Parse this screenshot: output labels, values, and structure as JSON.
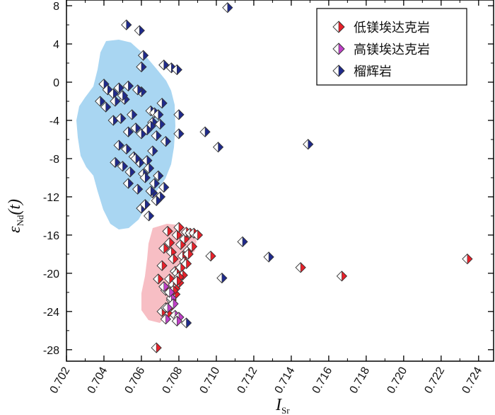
{
  "chart_data": {
    "type": "scatter",
    "title": "",
    "xlabel": {
      "main": "I",
      "sub": "Sr"
    },
    "ylabel": {
      "main": "ε",
      "sub": "Nd",
      "tail": "(t)"
    },
    "xlim": [
      0.702,
      0.7248
    ],
    "ylim": [
      -29.2,
      8.6
    ],
    "x_ticks": [
      "0.702",
      "0.704",
      "0.706",
      "0.708",
      "0.710",
      "0.712",
      "0.714",
      "0.716",
      "0.718",
      "0.720",
      "0.722",
      "0.724"
    ],
    "x_tick_values": [
      0.702,
      0.704,
      0.706,
      0.708,
      0.71,
      0.712,
      0.714,
      0.716,
      0.718,
      0.72,
      0.722,
      0.724
    ],
    "y_ticks": [
      "8",
      "4",
      "0",
      "-4",
      "-8",
      "-12",
      "-16",
      "-20",
      "-24",
      "-28"
    ],
    "y_tick_values": [
      8,
      4,
      0,
      -4,
      -8,
      -12,
      -16,
      -20,
      -24,
      -28
    ],
    "grid": false,
    "legend_position": "top-right",
    "colors": {
      "red": "#e8202a",
      "magenta": "#c040c8",
      "navy": "#1f2a8c",
      "blue_field": "#8cc8ee",
      "red_field": "#f4a8b0"
    },
    "series": [
      {
        "name": "低镁埃达克岩",
        "color": "#e8202a",
        "x": [
          0.7069,
          0.7071,
          0.7072,
          0.7074,
          0.7075,
          0.7076,
          0.7077,
          0.7078,
          0.7079,
          0.708,
          0.7081,
          0.7082,
          0.7083,
          0.7084,
          0.7085,
          0.7086,
          0.7088,
          0.709,
          0.7073,
          0.7075,
          0.7077,
          0.7079,
          0.7081,
          0.7083,
          0.7085,
          0.7087,
          0.7076,
          0.7078,
          0.708,
          0.7082,
          0.7084,
          0.7074,
          0.7076,
          0.7078,
          0.708,
          0.7071,
          0.7073,
          0.7075,
          0.7077,
          0.7079,
          0.7068,
          0.7097,
          0.7145,
          0.7167,
          0.7234
        ],
        "y": [
          -20.6,
          -19.2,
          -17.4,
          -15.6,
          -16.8,
          -17.8,
          -18.5,
          -19.8,
          -16.0,
          -15.2,
          -17.0,
          -18.2,
          -16.4,
          -15.7,
          -17.6,
          -15.8,
          -15.8,
          -16.0,
          -21.8,
          -20.6,
          -21.2,
          -20.0,
          -19.4,
          -18.8,
          -18.0,
          -17.2,
          -23.4,
          -22.2,
          -21.0,
          -20.2,
          -19.0,
          -24.2,
          -22.8,
          -21.6,
          -20.4,
          -24.0,
          -23.6,
          -22.0,
          -21.8,
          -20.8,
          -27.8,
          -18.2,
          -19.4,
          -20.3,
          -18.5
        ]
      },
      {
        "name": "高镁埃达克岩",
        "color": "#c040c8",
        "x": [
          0.7072,
          0.7074,
          0.7076,
          0.7078,
          0.708,
          0.7075,
          0.7077,
          0.7079,
          0.7073
        ],
        "y": [
          -21.4,
          -23.6,
          -22.6,
          -24.4,
          -24.6,
          -22.0,
          -23.2,
          -25.0,
          -24.8
        ]
      },
      {
        "name": "榴辉岩",
        "color": "#1f2a8c",
        "x": [
          0.7052,
          0.7059,
          0.7061,
          0.706,
          0.706,
          0.7072,
          0.7076,
          0.7079,
          0.704,
          0.7042,
          0.7045,
          0.7046,
          0.7048,
          0.7051,
          0.7053,
          0.7038,
          0.7041,
          0.705,
          0.7055,
          0.7058,
          0.7065,
          0.7067,
          0.7066,
          0.7069,
          0.7071,
          0.708,
          0.7045,
          0.7049,
          0.7053,
          0.7057,
          0.706,
          0.7065,
          0.707,
          0.7063,
          0.7068,
          0.7048,
          0.7052,
          0.7056,
          0.7059,
          0.7063,
          0.7066,
          0.7073,
          0.708,
          0.7046,
          0.705,
          0.7054,
          0.7057,
          0.7061,
          0.7064,
          0.7067,
          0.7069,
          0.7072,
          0.7053,
          0.7058,
          0.7062,
          0.7066,
          0.707,
          0.706,
          0.7064,
          0.7068,
          0.7062,
          0.7065,
          0.7094,
          0.7101,
          0.7106,
          0.7114,
          0.7128,
          0.7103,
          0.7149,
          0.7084
        ],
        "y": [
          6.0,
          5.4,
          2.8,
          1.6,
          -1.0,
          1.8,
          1.5,
          1.3,
          -0.2,
          -0.8,
          -1.2,
          -2.0,
          -0.6,
          -1.8,
          -0.4,
          -2.0,
          -2.6,
          -1.4,
          -3.4,
          -0.8,
          -3.0,
          -3.2,
          -4.2,
          -3.4,
          -2.2,
          -3.4,
          -4.0,
          -3.8,
          -5.2,
          -4.8,
          -5.4,
          -4.6,
          -4.4,
          -5.0,
          -5.6,
          -6.6,
          -7.0,
          -7.8,
          -8.4,
          -8.2,
          -7.2,
          -6.2,
          -5.4,
          -8.4,
          -8.8,
          -9.4,
          -8.0,
          -9.6,
          -9.0,
          -10.6,
          -9.8,
          -11.0,
          -10.6,
          -11.2,
          -10.0,
          -11.6,
          -12.0,
          -13.2,
          -14.0,
          -12.4,
          -12.8,
          -11.4,
          -5.2,
          -6.8,
          7.8,
          -16.7,
          -18.3,
          -20.5,
          -6.5,
          -25.2
        ]
      }
    ]
  }
}
